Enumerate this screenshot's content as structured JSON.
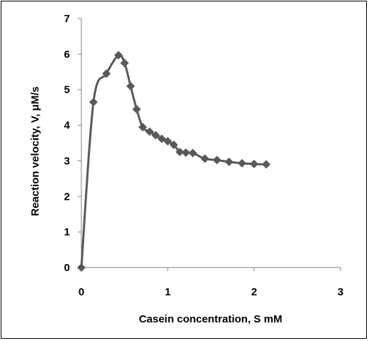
{
  "chart_data": {
    "type": "line",
    "title": "",
    "xlabel": "Casein concentration, S mM",
    "ylabel": "Reaction velocity, V,  μM/s",
    "xlim": [
      0,
      3
    ],
    "ylim": [
      0,
      7
    ],
    "x_ticks": [
      "0",
      "1",
      "2",
      "3"
    ],
    "y_ticks": [
      "0",
      "1",
      "2",
      "3",
      "4",
      "5",
      "6",
      "7"
    ],
    "grid": false,
    "legend": "none",
    "marker": "diamond",
    "series_color": "#595959",
    "series": [
      {
        "x": [
          0,
          0.14,
          0.29,
          0.43,
          0.5,
          0.57,
          0.64,
          0.71,
          0.79,
          0.86,
          0.93,
          1.0,
          1.07,
          1.14,
          1.21,
          1.29,
          1.43,
          1.57,
          1.71,
          1.86,
          2.0,
          2.14
        ],
        "y": [
          0,
          4.65,
          5.45,
          5.97,
          5.75,
          5.1,
          4.45,
          3.95,
          3.82,
          3.72,
          3.62,
          3.55,
          3.45,
          3.25,
          3.23,
          3.22,
          3.06,
          3.02,
          2.97,
          2.93,
          2.91,
          2.9
        ]
      }
    ]
  }
}
